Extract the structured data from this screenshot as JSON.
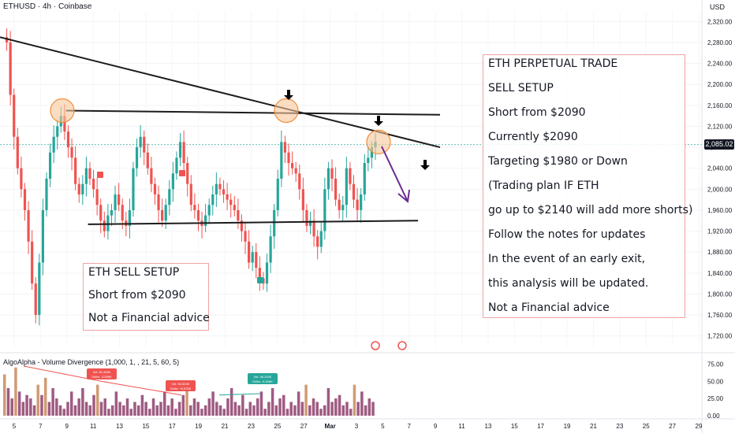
{
  "header": {
    "symbol_line": "ETHUSD · 4h · Coinbase",
    "currency": "USD"
  },
  "colors": {
    "up": "#26a69a",
    "down": "#ef5350",
    "trend_line": "#1c1c1c",
    "circle_fill": "#f7c79a",
    "circle_stroke": "#f28c38",
    "arrow": "#6a2c91",
    "vol": "#8e3e6c",
    "vol_hi": "#c98a5c"
  },
  "chart_data": {
    "type": "candlestick",
    "price_axis": {
      "ylim": [
        1700,
        2340
      ],
      "ticks": [
        "2,320.00",
        "2,280.00",
        "2,240.00",
        "2,200.00",
        "2,160.00",
        "2,120.00",
        "2,080.00",
        "2,040.00",
        "2,000.00",
        "1,960.00",
        "1,920.00",
        "1,880.00",
        "1,840.00",
        "1,800.00",
        "1,760.00",
        "1,720.00"
      ],
      "tick_values": [
        2320,
        2280,
        2240,
        2200,
        2160,
        2120,
        2080,
        2040,
        2000,
        1960,
        1920,
        1880,
        1840,
        1800,
        1760,
        1720
      ]
    },
    "current_price": {
      "value": 2085.02,
      "label": "2,085.02"
    },
    "x_axis": {
      "ticks": [
        "5",
        "7",
        "9",
        "11",
        "13",
        "15",
        "17",
        "19",
        "21",
        "23",
        "25",
        "27",
        "Mar",
        "3",
        "5",
        "7",
        "9",
        "11",
        "13",
        "15",
        "17",
        "19",
        "21",
        "23",
        "25",
        "27",
        "29"
      ]
    },
    "price_path": [
      2290,
      2280,
      2180,
      2100,
      2040,
      2000,
      1960,
      1900,
      1820,
      1760,
      1860,
      1960,
      2020,
      2070,
      2100,
      2120,
      2140,
      2110,
      2080,
      2060,
      2010,
      1990,
      2010,
      2040,
      2020,
      2000,
      1970,
      1940,
      1920,
      1950,
      1960,
      1990,
      1970,
      1940,
      1930,
      1960,
      2040,
      2080,
      2100,
      2070,
      2040,
      2010,
      1990,
      1960,
      1940,
      1970,
      2000,
      2030,
      2060,
      2090,
      2050,
      2010,
      1970,
      1960,
      1940,
      1930,
      1950,
      1970,
      1990,
      2010,
      2000,
      1990,
      1980,
      1970,
      1960,
      1940,
      1920,
      1900,
      1860,
      1880,
      1850,
      1830,
      1820,
      1860,
      1910,
      1960,
      2020,
      2090,
      2070,
      2050,
      2040,
      2030,
      2000,
      1960,
      1930,
      1940,
      1910,
      1890,
      1920,
      2000,
      2040,
      2020,
      1980,
      1960,
      1970,
      2040,
      2010,
      1980,
      1960,
      1990,
      2050,
      2060,
      2080,
      2090
    ],
    "trend_lines": [
      {
        "from": [
          2290,
          0.0
        ],
        "to": [
          2080,
          1.0
        ]
      },
      {
        "from": [
          2150,
          0.15
        ],
        "to": [
          2142,
          1.0
        ]
      },
      {
        "from": [
          1933,
          0.2
        ],
        "to": [
          1940,
          0.95
        ]
      }
    ],
    "volume_axis": {
      "ylim": [
        0,
        80
      ],
      "ticks": [
        "75.00",
        "50.00",
        "25.00",
        "0.00"
      ],
      "tick_values": [
        75,
        50,
        25,
        0
      ]
    },
    "volume": [
      60,
      40,
      25,
      70,
      35,
      20,
      30,
      25,
      15,
      45,
      30,
      55,
      20,
      40,
      25,
      15,
      10,
      20,
      35,
      15,
      25,
      40,
      20,
      15,
      30,
      45,
      20,
      25,
      10,
      15,
      35,
      20,
      15,
      25,
      10,
      20,
      15,
      30,
      20,
      10,
      25,
      15,
      20,
      35,
      15,
      25,
      10,
      20,
      30,
      45,
      15,
      25,
      20,
      10,
      15,
      25,
      35,
      20,
      15,
      10,
      25,
      40,
      20,
      15,
      30,
      10,
      20,
      15,
      25,
      35,
      10,
      20,
      40,
      15,
      25,
      30,
      10,
      20,
      15,
      35,
      20,
      45,
      15,
      25,
      20,
      10,
      15,
      40,
      20,
      25,
      30,
      15,
      20,
      10,
      45,
      20,
      35,
      15,
      25,
      20
    ],
    "indicator_labels": [
      {
        "text": "Vol: 82.439K  Delta: -3.598K"
      },
      {
        "text": "Vol: 53.524K  Delta: +6.575K"
      },
      {
        "text": "Vol: 48.232K  Delta: -5.306K"
      }
    ]
  },
  "notes": {
    "right": [
      "ETH PERPETUAL TRADE",
      "SELL SETUP",
      "Short from $2090",
      "Currently $2090",
      "Targeting $1980 or Down",
      "(Trading plan IF ETH",
      "go up to $2140 will add more shorts)",
      "Follow the notes for updates",
      "In the event of an early exit,",
      "this analysis will be updated.",
      "Not a Financial advice"
    ],
    "left": [
      "ETH SELL SETUP",
      "Short from $2090",
      "Not a Financial advice"
    ]
  },
  "indicator": {
    "title": "AlgoAlpha - Volume Divergence (1,000, 1, , 21, 5, 60, 5)"
  }
}
